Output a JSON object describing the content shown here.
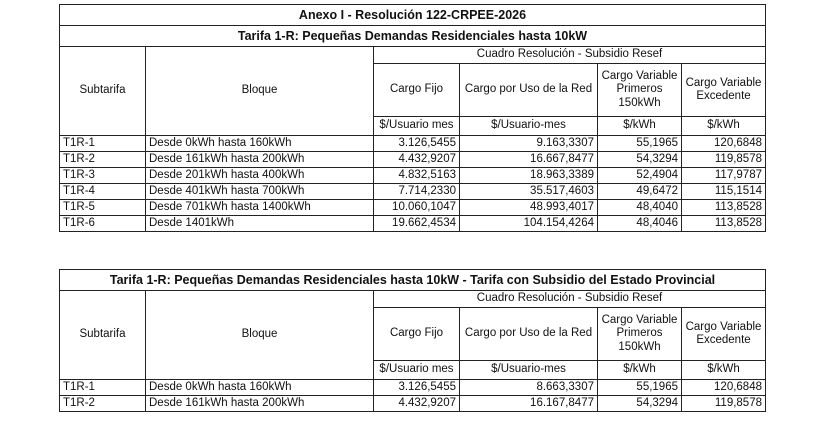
{
  "annex_title": "Anexo I - Resolución 122-CRPEE-2026",
  "tables": [
    {
      "title": "Tarifa 1-R: Pequeñas Demandas Residenciales hasta 10kW",
      "subheader": "Cuadro Resolución - Subsidio Resef",
      "col_subtarifa": "Subtarifa",
      "col_bloque": "Bloque",
      "col_cargo_fijo": "Cargo Fijo",
      "col_cargo_red": "Cargo por Uso de la Red",
      "col_var1": [
        "Cargo Variable",
        "Primeros",
        "150kWh"
      ],
      "col_var2": [
        "Cargo Variable",
        "Excedente"
      ],
      "units": [
        "$/Usuario mes",
        "$/Usuario-mes",
        "$/kWh",
        "$/kWh"
      ],
      "rows": [
        {
          "subtarifa": "T1R-1",
          "bloque": "Desde 0kWh hasta 160kWh",
          "fijo": "3.126,5455",
          "red": "9.163,3307",
          "v1": "55,1965",
          "v2": "120,6848"
        },
        {
          "subtarifa": "T1R-2",
          "bloque": "Desde 161kWh hasta 200kWh",
          "fijo": "4.432,9207",
          "red": "16.667,8477",
          "v1": "54,3294",
          "v2": "119,8578"
        },
        {
          "subtarifa": "T1R-3",
          "bloque": "Desde 201kWh hasta 400kWh",
          "fijo": "4.832,5163",
          "red": "18.963,3389",
          "v1": "52,4904",
          "v2": "117,9787"
        },
        {
          "subtarifa": "T1R-4",
          "bloque": "Desde 401kWh hasta 700kWh",
          "fijo": "7.714,2330",
          "red": "35.517,4603",
          "v1": "49,6472",
          "v2": "115,1514"
        },
        {
          "subtarifa": "T1R-5",
          "bloque": "Desde 701kWh hasta 1400kWh",
          "fijo": "10.060,1047",
          "red": "48.993,4017",
          "v1": "48,4040",
          "v2": "113,8528"
        },
        {
          "subtarifa": "T1R-6",
          "bloque": "Desde 1401kWh",
          "fijo": "19.662,4534",
          "red": "104.154,4264",
          "v1": "48,4046",
          "v2": "113,8528"
        }
      ]
    },
    {
      "title": "Tarifa 1-R: Pequeñas Demandas Residenciales hasta 10kW - Tarifa con Subsidio del Estado Provincial",
      "subheader": "Cuadro Resolución - Subsidio Resef",
      "col_subtarifa": "Subtarifa",
      "col_bloque": "Bloque",
      "col_cargo_fijo": "Cargo Fijo",
      "col_cargo_red": "Cargo por Uso de la Red",
      "col_var1": [
        "Cargo Variable",
        "Primeros",
        "150kWh"
      ],
      "col_var2": [
        "Cargo Variable",
        "Excedente"
      ],
      "units": [
        "$/Usuario mes",
        "$/Usuario-mes",
        "$/kWh",
        "$/kWh"
      ],
      "rows": [
        {
          "subtarifa": "T1R-1",
          "bloque": "Desde 0kWh hasta 160kWh",
          "fijo": "3.126,5455",
          "red": "8.663,3307",
          "v1": "55,1965",
          "v2": "120,6848"
        },
        {
          "subtarifa": "T1R-2",
          "bloque": "Desde 161kWh hasta 200kWh",
          "fijo": "4.432,9207",
          "red": "16.167,8477",
          "v1": "54,3294",
          "v2": "119,8578"
        }
      ]
    }
  ]
}
